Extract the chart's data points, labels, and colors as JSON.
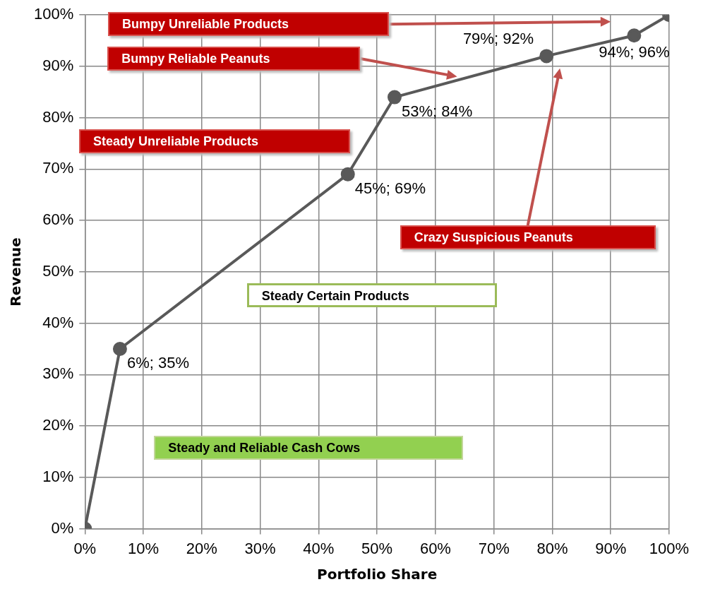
{
  "chart_data": {
    "type": "line",
    "xlabel": "Portfolio Share",
    "ylabel": "Revenue",
    "x": [
      0,
      6,
      45,
      53,
      79,
      94,
      100
    ],
    "series": [
      {
        "color": "#595959",
        "values": [
          0,
          35,
          69,
          84,
          92,
          96,
          100
        ],
        "value_labels": [
          null,
          "6%; 35%",
          "45%; 69%",
          "53%; 84%",
          "79%; 92%",
          "94%; 96%",
          null
        ]
      }
    ],
    "xlim": [
      0,
      100
    ],
    "ylim": [
      0,
      100
    ],
    "xticks": [
      {
        "value": 0,
        "label": "0%"
      },
      {
        "value": 10,
        "label": "10%"
      },
      {
        "value": 20,
        "label": "20%"
      },
      {
        "value": 30,
        "label": "30%"
      },
      {
        "value": 40,
        "label": "40%"
      },
      {
        "value": 50,
        "label": "50%"
      },
      {
        "value": 60,
        "label": "60%"
      },
      {
        "value": 70,
        "label": "70%"
      },
      {
        "value": 80,
        "label": "80%"
      },
      {
        "value": 90,
        "label": "90%"
      },
      {
        "value": 100,
        "label": "100%"
      }
    ],
    "yticks": [
      {
        "value": 0,
        "label": "0%"
      },
      {
        "value": 10,
        "label": "10%"
      },
      {
        "value": 20,
        "label": "20%"
      },
      {
        "value": 30,
        "label": "30%"
      },
      {
        "value": 40,
        "label": "40%"
      },
      {
        "value": 50,
        "label": "50%"
      },
      {
        "value": 60,
        "label": "60%"
      },
      {
        "value": 70,
        "label": "70%"
      },
      {
        "value": 80,
        "label": "80%"
      },
      {
        "value": 90,
        "label": "90%"
      },
      {
        "value": 100,
        "label": "100%"
      }
    ],
    "grid": true,
    "marker": "circle",
    "line_style": "solid",
    "legend": false,
    "annotations": [
      "Bumpy Unreliable Products",
      "Bumpy Reliable Peanuts",
      "Steady Unreliable Products",
      "Crazy Suspicious Peanuts",
      "Steady Certain Products",
      "Steady and Reliable Cash Cows"
    ]
  }
}
